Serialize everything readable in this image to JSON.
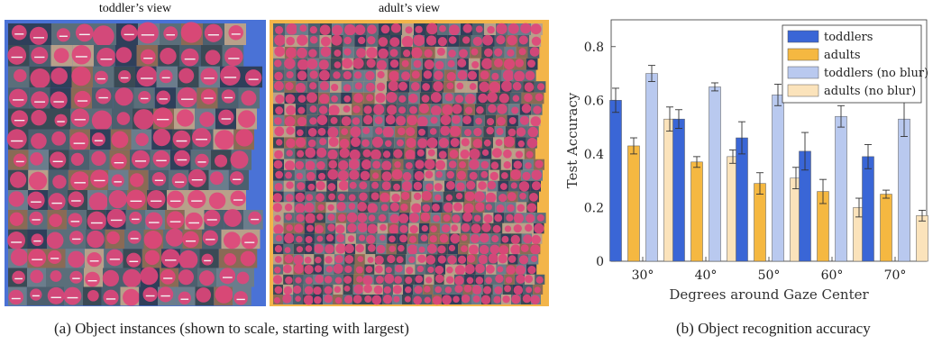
{
  "panels": {
    "left_title": "toddler’s view",
    "right_title": "adult’s view",
    "left_border_color": "#4a72d6",
    "right_border_color": "#f3b54a",
    "instance_color": "#e0457a"
  },
  "captions": {
    "a": "(a) Object instances (shown to scale, starting with largest)",
    "b": "(b) Object recognition accuracy"
  },
  "chart_data": {
    "type": "bar",
    "categories": [
      "30°",
      "40°",
      "50°",
      "60°",
      "70°"
    ],
    "xlabel": "Degrees around Gaze Center",
    "ylabel": "Test Accuracy",
    "ylim": [
      0,
      0.9
    ],
    "yticks": [
      "0",
      "0.2",
      "0.4",
      "0.6",
      "0.8"
    ],
    "ytick_values": [
      0,
      0.2,
      0.4,
      0.6,
      0.8
    ],
    "legend_position": "top-right",
    "series": [
      {
        "name": "toddlers",
        "color": "#3a66d6",
        "values": [
          0.6,
          0.53,
          0.46,
          0.41,
          0.39
        ],
        "errors": [
          0.045,
          0.035,
          0.06,
          0.07,
          0.045
        ]
      },
      {
        "name": "adults",
        "color": "#f5b841",
        "values": [
          0.43,
          0.37,
          0.29,
          0.26,
          0.25
        ],
        "errors": [
          0.03,
          0.02,
          0.04,
          0.045,
          0.015
        ]
      },
      {
        "name": "toddlers (no blur)",
        "color": "#b9c9ef",
        "values": [
          0.7,
          0.65,
          0.62,
          0.54,
          0.53
        ],
        "errors": [
          0.03,
          0.015,
          0.04,
          0.04,
          0.065
        ]
      },
      {
        "name": "adults (no blur)",
        "color": "#fbe3bb",
        "values": [
          0.53,
          0.39,
          0.31,
          0.2,
          0.17
        ],
        "errors": [
          0.045,
          0.025,
          0.04,
          0.035,
          0.02
        ]
      }
    ]
  }
}
